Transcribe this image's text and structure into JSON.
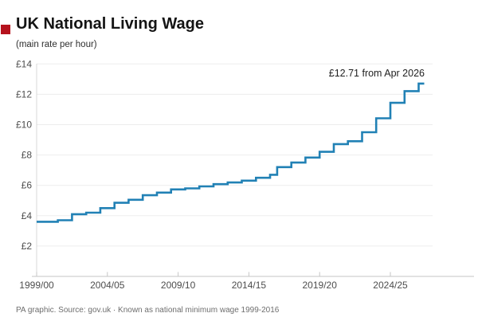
{
  "header": {
    "title": "UK National Living Wage",
    "subtitle": "(main rate per hour)",
    "brand_square_color": "#b5121d"
  },
  "footer": {
    "text": "PA graphic. Source: gov.uk · Known as national minimum wage 1999-2016"
  },
  "chart_data": {
    "type": "line",
    "step": true,
    "title": "UK National Living Wage",
    "subtitle": "(main rate per hour)",
    "annotation": "£12.71 from Apr 2026",
    "line_color": "#2181b5",
    "grid_color": "#ededed",
    "axis_color": "#c6c6c6",
    "label_color": "#4d4d4d",
    "annotation_color": "#1f1f1f",
    "ylim": [
      0,
      14
    ],
    "xlim": [
      1999.25,
      2027.2
    ],
    "grid": true,
    "y_ticks": [
      14,
      12,
      10,
      8,
      6,
      4,
      2
    ],
    "y_tick_labels": [
      "£14",
      "£12",
      "£10",
      "£8",
      "£6",
      "£4",
      "£2"
    ],
    "x_tick_years": [
      1999.25,
      2004.25,
      2009.25,
      2014.25,
      2019.25,
      2024.25
    ],
    "x_tick_labels": [
      "1999/00",
      "2004/05",
      "2009/10",
      "2014/15",
      "2019/20",
      "2024/25"
    ],
    "points": [
      {
        "date": "Apr 1999",
        "year": 1999.25,
        "value": 3.6
      },
      {
        "date": "Oct 2000",
        "year": 2000.75,
        "value": 3.7
      },
      {
        "date": "Oct 2001",
        "year": 2001.75,
        "value": 4.1
      },
      {
        "date": "Oct 2002",
        "year": 2002.75,
        "value": 4.2
      },
      {
        "date": "Oct 2003",
        "year": 2003.75,
        "value": 4.5
      },
      {
        "date": "Oct 2004",
        "year": 2004.75,
        "value": 4.85
      },
      {
        "date": "Oct 2005",
        "year": 2005.75,
        "value": 5.05
      },
      {
        "date": "Oct 2006",
        "year": 2006.75,
        "value": 5.35
      },
      {
        "date": "Oct 2007",
        "year": 2007.75,
        "value": 5.52
      },
      {
        "date": "Oct 2008",
        "year": 2008.75,
        "value": 5.73
      },
      {
        "date": "Oct 2009",
        "year": 2009.75,
        "value": 5.8
      },
      {
        "date": "Oct 2010",
        "year": 2010.75,
        "value": 5.93
      },
      {
        "date": "Oct 2011",
        "year": 2011.75,
        "value": 6.08
      },
      {
        "date": "Oct 2012",
        "year": 2012.75,
        "value": 6.19
      },
      {
        "date": "Oct 2013",
        "year": 2013.75,
        "value": 6.31
      },
      {
        "date": "Oct 2014",
        "year": 2014.75,
        "value": 6.5
      },
      {
        "date": "Oct 2015",
        "year": 2015.75,
        "value": 6.7
      },
      {
        "date": "Apr 2016",
        "year": 2016.25,
        "value": 7.2
      },
      {
        "date": "Apr 2017",
        "year": 2017.25,
        "value": 7.5
      },
      {
        "date": "Apr 2018",
        "year": 2018.25,
        "value": 7.83
      },
      {
        "date": "Apr 2019",
        "year": 2019.25,
        "value": 8.21
      },
      {
        "date": "Apr 2020",
        "year": 2020.25,
        "value": 8.72
      },
      {
        "date": "Apr 2021",
        "year": 2021.25,
        "value": 8.91
      },
      {
        "date": "Apr 2022",
        "year": 2022.25,
        "value": 9.5
      },
      {
        "date": "Apr 2023",
        "year": 2023.25,
        "value": 10.42
      },
      {
        "date": "Apr 2024",
        "year": 2024.25,
        "value": 11.44
      },
      {
        "date": "Apr 2025",
        "year": 2025.25,
        "value": 12.21
      },
      {
        "date": "Apr 2026",
        "year": 2026.25,
        "value": 12.71
      }
    ]
  }
}
